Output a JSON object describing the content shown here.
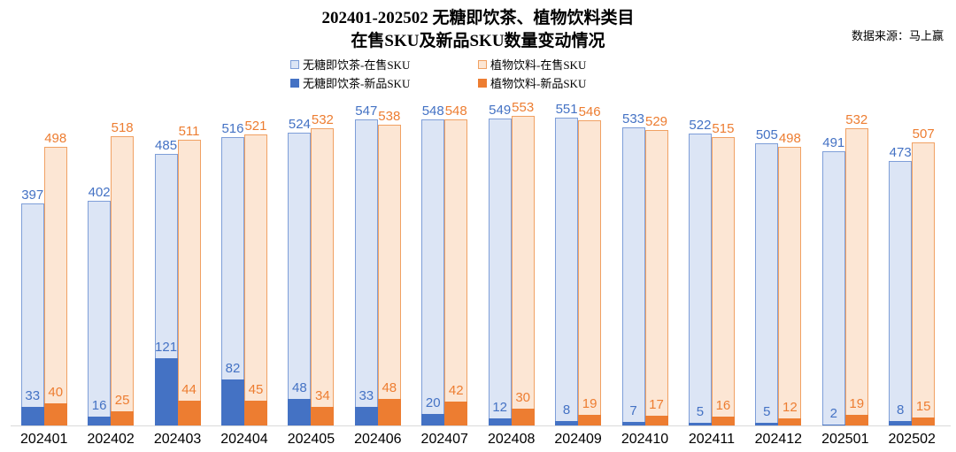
{
  "header": {
    "title_line1": "202401-202502 无糖即饮茶、植物饮料类目",
    "title_line2": "在售SKU及新品SKU数量变动情况",
    "source": "数据来源：马上赢"
  },
  "legend": {
    "items": [
      {
        "label": "无糖即饮茶-在售SKU",
        "swatch": "light-blue"
      },
      {
        "label": "植物饮料-在售SKU",
        "swatch": "light-orange"
      },
      {
        "label": "无糖即饮茶-新品SKU",
        "swatch": "solid-blue"
      },
      {
        "label": "植物饮料-新品SKU",
        "swatch": "solid-orange"
      }
    ]
  },
  "colors": {
    "blue": "#4472C4",
    "orange": "#ED7D31",
    "blue_light_fill": "#DCE5F5",
    "blue_light_border": "#7E9ED8",
    "orange_light_fill": "#FCE6D4",
    "orange_light_border": "#F1A163",
    "axis_line": "#D9D9D9"
  },
  "chart_data": {
    "type": "bar",
    "title": "202401-202502 无糖即饮茶、植物饮料类目 在售SKU及新品SKU数量变动情况",
    "source": "数据来源：马上赢",
    "categories": [
      "202401",
      "202402",
      "202403",
      "202404",
      "202405",
      "202406",
      "202407",
      "202408",
      "202409",
      "202410",
      "202411",
      "202412",
      "202501",
      "202502"
    ],
    "series": [
      {
        "name": "无糖即饮茶-在售SKU",
        "values": [
          397,
          402,
          485,
          516,
          524,
          547,
          548,
          549,
          551,
          533,
          522,
          505,
          491,
          473
        ]
      },
      {
        "name": "植物饮料-在售SKU",
        "values": [
          498,
          518,
          511,
          521,
          532,
          538,
          548,
          553,
          546,
          529,
          515,
          498,
          532,
          507
        ]
      },
      {
        "name": "无糖即饮茶-新品SKU",
        "values": [
          33,
          16,
          121,
          82,
          48,
          33,
          20,
          12,
          8,
          7,
          5,
          5,
          2,
          8
        ]
      },
      {
        "name": "植物饮料-新品SKU",
        "values": [
          40,
          25,
          44,
          45,
          34,
          48,
          42,
          30,
          19,
          17,
          16,
          12,
          19,
          15
        ]
      }
    ],
    "ylim": [
      0,
      560
    ],
    "grid": false,
    "legend_position": "top",
    "value_labels": true
  }
}
